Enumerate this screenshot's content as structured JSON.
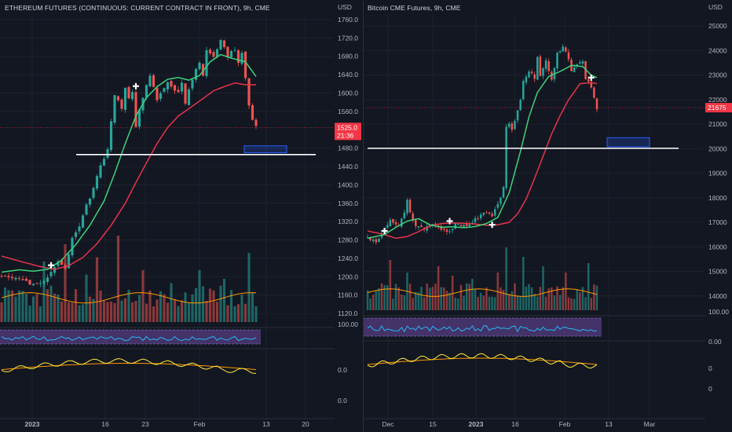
{
  "colors": {
    "background": "#131722",
    "grid": "#1e222d",
    "candle_up": "#26a69a",
    "candle_down": "#ef5350",
    "ma_fast": "#3dd37a",
    "ma_slow": "#e8334a",
    "axis_text": "#b2b5be",
    "price_badge": "#f23645",
    "rsi_line": "#29b6f6",
    "rsi_band": "#7e57c2",
    "osc_fast": "#ffeb3b",
    "osc_slow": "#ff9800",
    "support_line": "#ffffff",
    "target_box": "#2962ff"
  },
  "left_chart": {
    "title": "ETHEREUM FUTURES (CONTINUOUS: CURRENT CONTRACT IN FRONT), 9h, CME",
    "currency": "USD",
    "price_badge": "1525.0",
    "price_badge_time": "21:36",
    "chart_data": {
      "type": "candlestick",
      "title": "ETHEREUM FUTURES (CONTINUOUS: CURRENT CONTRACT IN FRONT), 9h, CME",
      "ylabel": "USD",
      "y_ticks": [
        "1760.0",
        "1720.0",
        "1680.0",
        "1640.0",
        "1600.0",
        "1560.0",
        "1480.0",
        "1440.0",
        "1400.0",
        "1360.0",
        "1320.0",
        "1280.0",
        "1240.0",
        "1200.0",
        "1160.0",
        "1120.0"
      ],
      "ylim": [
        1115,
        1765
      ],
      "x_ticks": [
        "2023",
        "16",
        "23",
        "Feb",
        "13",
        "20"
      ],
      "last_price": 1525.0,
      "support_level": 1466,
      "target_zone": [
        1470,
        1485
      ],
      "ma_fast_anchors": [
        [
          0,
          1210
        ],
        [
          5,
          1215
        ],
        [
          9,
          1212
        ],
        [
          13,
          1216
        ],
        [
          17,
          1236
        ],
        [
          21,
          1270
        ],
        [
          25,
          1312
        ],
        [
          29,
          1365
        ],
        [
          32,
          1425
        ],
        [
          35,
          1490
        ],
        [
          38,
          1550
        ],
        [
          41,
          1590
        ],
        [
          44,
          1614
        ],
        [
          47,
          1630
        ],
        [
          50,
          1634
        ],
        [
          53,
          1628
        ],
        [
          56,
          1638
        ],
        [
          59,
          1668
        ],
        [
          62,
          1684
        ],
        [
          65,
          1676
        ],
        [
          69,
          1668
        ],
        [
          72,
          1636
        ]
      ],
      "ma_slow_anchors": [
        [
          0,
          1245
        ],
        [
          6,
          1232
        ],
        [
          11,
          1222
        ],
        [
          15,
          1216
        ],
        [
          19,
          1224
        ],
        [
          23,
          1242
        ],
        [
          27,
          1272
        ],
        [
          31,
          1312
        ],
        [
          35,
          1360
        ],
        [
          38,
          1405
        ],
        [
          41,
          1448
        ],
        [
          44,
          1490
        ],
        [
          47,
          1525
        ],
        [
          50,
          1550
        ],
        [
          53,
          1566
        ],
        [
          57,
          1588
        ],
        [
          60,
          1605
        ],
        [
          63,
          1614
        ],
        [
          66,
          1622
        ],
        [
          69,
          1618
        ],
        [
          72,
          1618
        ]
      ],
      "close_anchors": [
        [
          0,
          1200
        ],
        [
          4,
          1196
        ],
        [
          8,
          1185
        ],
        [
          12,
          1190
        ],
        [
          16,
          1232
        ],
        [
          18,
          1218
        ],
        [
          20,
          1285
        ],
        [
          22,
          1310
        ],
        [
          24,
          1355
        ],
        [
          26,
          1392
        ],
        [
          27,
          1420
        ],
        [
          28,
          1440
        ],
        [
          30,
          1475
        ],
        [
          31,
          1540
        ],
        [
          32,
          1596
        ],
        [
          34,
          1568
        ],
        [
          35,
          1612
        ],
        [
          36,
          1585
        ],
        [
          37,
          1605
        ],
        [
          38,
          1530
        ],
        [
          39,
          1560
        ],
        [
          41,
          1614
        ],
        [
          42,
          1638
        ],
        [
          44,
          1582
        ],
        [
          45,
          1602
        ],
        [
          47,
          1625
        ],
        [
          48,
          1612
        ],
        [
          50,
          1605
        ],
        [
          51,
          1620
        ],
        [
          52,
          1578
        ],
        [
          54,
          1632
        ],
        [
          56,
          1668
        ],
        [
          57,
          1640
        ],
        [
          58,
          1690
        ],
        [
          60,
          1676
        ],
        [
          62,
          1715
        ],
        [
          64,
          1682
        ],
        [
          66,
          1695
        ],
        [
          67,
          1666
        ],
        [
          68,
          1688
        ],
        [
          69,
          1632
        ],
        [
          70,
          1575
        ],
        [
          71,
          1538
        ],
        [
          72,
          1525
        ]
      ],
      "volume_peaks": [
        [
          12,
          0.7
        ],
        [
          18,
          0.9
        ],
        [
          24,
          0.55
        ],
        [
          27,
          0.75
        ],
        [
          33,
          1.0
        ],
        [
          40,
          0.6
        ],
        [
          48,
          0.45
        ],
        [
          56,
          0.6
        ],
        [
          63,
          0.5
        ],
        [
          70,
          0.8
        ]
      ],
      "signals": [
        {
          "index": 14,
          "price": 1225
        },
        {
          "index": 38,
          "price": 1615
        }
      ],
      "volume_axis": "100.00",
      "oscillator_axis": [
        "0.0",
        "0.0"
      ]
    }
  },
  "right_chart": {
    "title": "Bitcoin CME Futures, 9h, CME",
    "currency": "USD",
    "price_badge": "21675",
    "chart_data": {
      "type": "candlestick",
      "title": "Bitcoin CME Futures, 9h, CME",
      "ylabel": "USD",
      "y_ticks": [
        "25000",
        "24000",
        "23000",
        "22000",
        "21000",
        "20000",
        "19000",
        "18000",
        "17000",
        "16000",
        "15000",
        "14000"
      ],
      "ylim": [
        13800,
        25200
      ],
      "x_ticks": [
        "Dec",
        "15",
        "2023",
        "16",
        "Feb",
        "13",
        "Mar"
      ],
      "last_price": 21675,
      "support_level": 20020,
      "target_zone": [
        20080,
        20450
      ],
      "ma_fast_anchors": [
        [
          0,
          16350
        ],
        [
          6,
          16500
        ],
        [
          10,
          16800
        ],
        [
          14,
          17050
        ],
        [
          18,
          17150
        ],
        [
          22,
          16900
        ],
        [
          26,
          16800
        ],
        [
          30,
          16820
        ],
        [
          34,
          16780
        ],
        [
          38,
          16830
        ],
        [
          42,
          16950
        ],
        [
          46,
          17200
        ],
        [
          50,
          18200
        ],
        [
          54,
          19900
        ],
        [
          57,
          21300
        ],
        [
          60,
          22300
        ],
        [
          64,
          22950
        ],
        [
          68,
          23150
        ],
        [
          72,
          23400
        ],
        [
          76,
          23350
        ],
        [
          79,
          23000
        ],
        [
          81,
          22900
        ]
      ],
      "ma_slow_anchors": [
        [
          0,
          16650
        ],
        [
          6,
          16500
        ],
        [
          10,
          16350
        ],
        [
          14,
          16420
        ],
        [
          18,
          16620
        ],
        [
          22,
          16850
        ],
        [
          26,
          16950
        ],
        [
          30,
          16980
        ],
        [
          34,
          16960
        ],
        [
          38,
          16930
        ],
        [
          42,
          16880
        ],
        [
          46,
          16900
        ],
        [
          50,
          17000
        ],
        [
          53,
          17350
        ],
        [
          56,
          17950
        ],
        [
          59,
          18800
        ],
        [
          62,
          19700
        ],
        [
          65,
          20600
        ],
        [
          68,
          21350
        ],
        [
          71,
          22000
        ],
        [
          75,
          22650
        ],
        [
          79,
          22700
        ],
        [
          81,
          22650
        ]
      ],
      "close_anchors": [
        [
          0,
          16400
        ],
        [
          3,
          16200
        ],
        [
          5,
          16550
        ],
        [
          8,
          17100
        ],
        [
          11,
          16900
        ],
        [
          13,
          17450
        ],
        [
          14,
          17900
        ],
        [
          15,
          17350
        ],
        [
          17,
          16900
        ],
        [
          20,
          16700
        ],
        [
          23,
          16950
        ],
        [
          26,
          16700
        ],
        [
          29,
          16650
        ],
        [
          31,
          16900
        ],
        [
          35,
          16850
        ],
        [
          39,
          17200
        ],
        [
          42,
          17400
        ],
        [
          44,
          17300
        ],
        [
          46,
          17700
        ],
        [
          48,
          18400
        ],
        [
          49,
          20900
        ],
        [
          50,
          21000
        ],
        [
          51,
          20800
        ],
        [
          52,
          21200
        ],
        [
          54,
          21950
        ],
        [
          55,
          22800
        ],
        [
          57,
          23200
        ],
        [
          59,
          22900
        ],
        [
          60,
          23700
        ],
        [
          61,
          23000
        ],
        [
          63,
          23600
        ],
        [
          65,
          22800
        ],
        [
          67,
          23900
        ],
        [
          69,
          24100
        ],
        [
          71,
          23700
        ],
        [
          72,
          23100
        ],
        [
          74,
          23400
        ],
        [
          76,
          23600
        ],
        [
          77,
          22900
        ],
        [
          79,
          22500
        ],
        [
          81,
          21675
        ]
      ],
      "volume_peaks": [
        [
          8,
          0.8
        ],
        [
          14,
          0.6
        ],
        [
          25,
          0.7
        ],
        [
          30,
          0.55
        ],
        [
          37,
          0.5
        ],
        [
          46,
          0.6
        ],
        [
          49,
          1.0
        ],
        [
          55,
          0.85
        ],
        [
          62,
          0.7
        ],
        [
          70,
          0.6
        ],
        [
          78,
          0.75
        ]
      ],
      "signals": [
        {
          "index": 6,
          "price": 16650
        },
        {
          "index": 29,
          "price": 17050
        },
        {
          "index": 44,
          "price": 16900
        },
        {
          "index": 79,
          "price": 22900
        }
      ],
      "volume_axis": "0.00",
      "oscillator_axis": [
        "100.00",
        "0.00",
        "0",
        "0"
      ]
    }
  }
}
